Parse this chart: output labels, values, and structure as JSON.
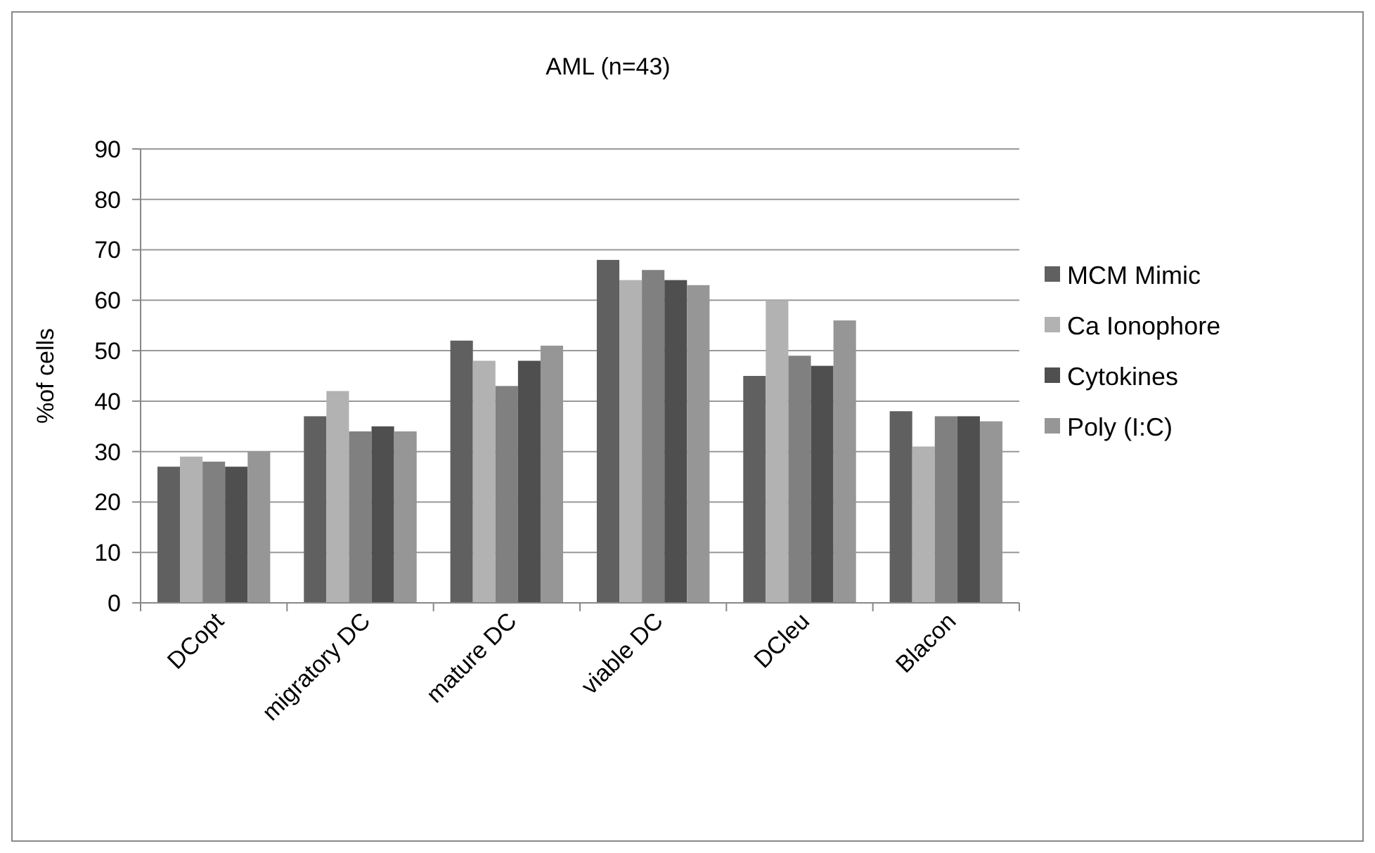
{
  "chart_data": {
    "type": "bar",
    "title": "AML (n=43)",
    "ylabel": "%of cells",
    "categories": [
      "DCopt",
      "migratory DC",
      "mature DC",
      "viable DC",
      "DCleu",
      "Blacon"
    ],
    "series": [
      {
        "name": "MCM Mimic",
        "color": "#606060",
        "values": [
          27,
          37,
          52,
          68,
          45,
          38
        ]
      },
      {
        "name": "Ca Ionophore",
        "color": "#b2b2b2",
        "values": [
          29,
          42,
          48,
          64,
          60,
          31
        ]
      },
      {
        "color": "#808080",
        "values": [
          28,
          34,
          43,
          66,
          49,
          37
        ]
      },
      {
        "name": "Cytokines",
        "color": "#4f4f4f",
        "values": [
          27,
          35,
          48,
          64,
          47,
          37
        ]
      },
      {
        "name": "Poly (I:C)",
        "color": "#969696",
        "values": [
          30,
          34,
          51,
          63,
          56,
          36
        ]
      }
    ],
    "ylim": [
      0,
      90
    ],
    "yticks": [
      0,
      10,
      20,
      30,
      40,
      50,
      60,
      70,
      80,
      90
    ],
    "grid": "y",
    "legend": "right"
  }
}
